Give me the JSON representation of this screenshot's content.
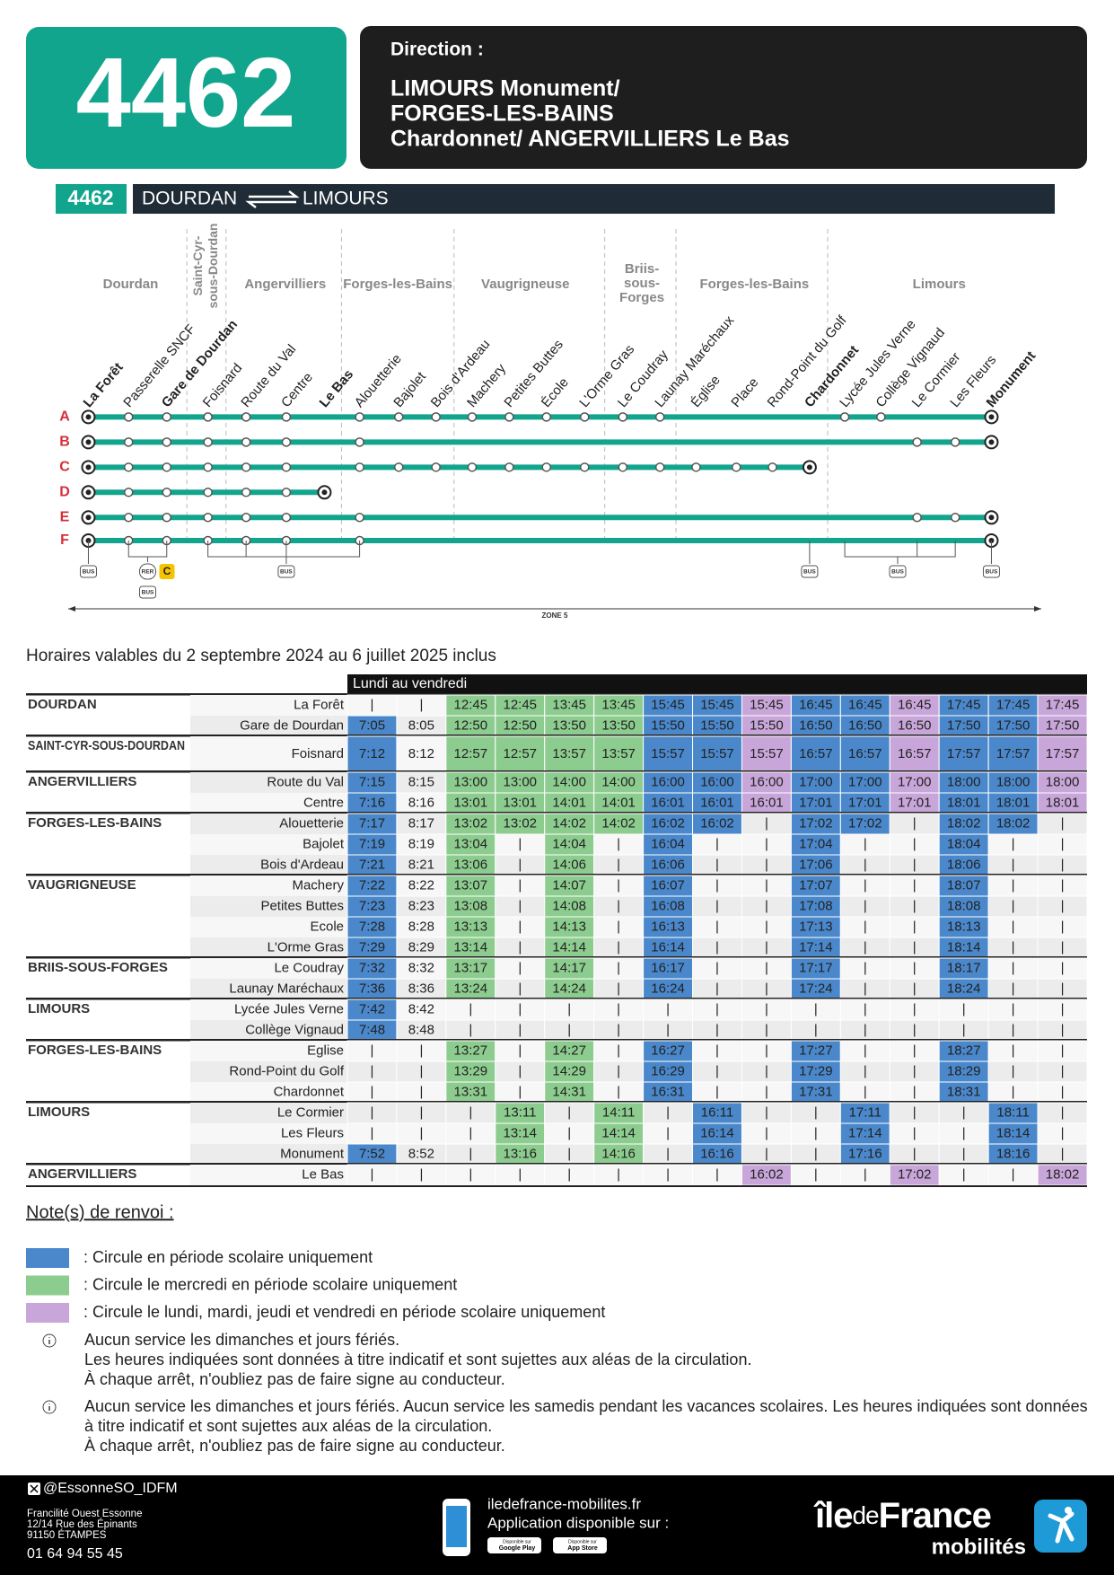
{
  "header": {
    "line": "4462",
    "direction_label": "Direction :",
    "direction": [
      "LIMOURS Monument/",
      "FORGES-LES-BAINS",
      "Chardonnet/ ANGERVILLIERS Le Bas"
    ]
  },
  "route": {
    "line": "4462",
    "from": "DOURDAN",
    "to": "LIMOURS"
  },
  "map": {
    "communes": [
      {
        "lines": [
          "Dourdan"
        ]
      },
      {
        "lines": [
          "Saint-Cyr-",
          "sous-Dourdan"
        ]
      },
      {
        "lines": [
          "Angervilliers"
        ]
      },
      {
        "lines": [
          "Forges-les-Bains"
        ]
      },
      {
        "lines": [
          "Vaugrigneuse"
        ]
      },
      {
        "lines": [
          "Briis-",
          "sous-",
          "Forges"
        ]
      },
      {
        "lines": [
          "Forges-les-Bains"
        ]
      },
      {
        "lines": [
          "Limours"
        ]
      }
    ],
    "stops": [
      {
        "name": "La Forêt",
        "bold": true
      },
      {
        "name": "Passerelle SNCF",
        "bold": false
      },
      {
        "name": "Gare de Dourdan",
        "bold": true
      },
      {
        "name": "Foisnard",
        "bold": false
      },
      {
        "name": "Route du Val",
        "bold": false
      },
      {
        "name": "Centre",
        "bold": false
      },
      {
        "name": "Le Bas",
        "bold": true
      },
      {
        "name": "Alouetterie",
        "bold": false
      },
      {
        "name": "Bajolet",
        "bold": false
      },
      {
        "name": "Bois d'Ardeau",
        "bold": false
      },
      {
        "name": "Machery",
        "bold": false
      },
      {
        "name": "Petites Buttes",
        "bold": false
      },
      {
        "name": "École",
        "bold": false
      },
      {
        "name": "L'Orme Gras",
        "bold": false
      },
      {
        "name": "Le Coudray",
        "bold": false
      },
      {
        "name": "Launay Maréchaux",
        "bold": false
      },
      {
        "name": "Église",
        "bold": false
      },
      {
        "name": "Place",
        "bold": false
      },
      {
        "name": "Rond-Point du Golf",
        "bold": false
      },
      {
        "name": "Chardonnet",
        "bold": true
      },
      {
        "name": "Lycée Jules Verne",
        "bold": false
      },
      {
        "name": "Collège Vignaud",
        "bold": false
      },
      {
        "name": "Le Cormier",
        "bold": false
      },
      {
        "name": "Les Fleurs",
        "bold": false
      },
      {
        "name": "Monument",
        "bold": true
      }
    ],
    "branches": [
      "A",
      "B",
      "C",
      "D",
      "E",
      "F"
    ],
    "bus_label": "BUS",
    "rer_label": "RER",
    "rer_line": "C",
    "zone": "ZONE 5"
  },
  "validity": "Horaires valables du 2 septembre 2024 au 6 juillet 2025 inclus",
  "timetable": {
    "days": "Lundi au vendredi",
    "column_colors": [
      "#4a88cb",
      null,
      "#8dcc8f",
      "#8dcc8f",
      "#8dcc8f",
      "#8dcc8f",
      "#4a88cb",
      "#4a88cb",
      "#c9a6d9",
      "#4a88cb",
      "#4a88cb",
      "#c9a6d9",
      "#4a88cb",
      "#4a88cb",
      "#c9a6d9"
    ],
    "groups": [
      {
        "commune": "DOURDAN",
        "stops": [
          {
            "name": "La Forêt",
            "times": [
              "|",
              "|",
              "12:45",
              "12:45",
              "13:45",
              "13:45",
              "15:45",
              "15:45",
              "15:45",
              "16:45",
              "16:45",
              "16:45",
              "17:45",
              "17:45",
              "17:45"
            ]
          },
          {
            "name": "Gare de Dourdan",
            "times": [
              "7:05",
              "8:05",
              "12:50",
              "12:50",
              "13:50",
              "13:50",
              "15:50",
              "15:50",
              "15:50",
              "16:50",
              "16:50",
              "16:50",
              "17:50",
              "17:50",
              "17:50"
            ]
          }
        ]
      },
      {
        "commune": "SAINT-CYR-SOUS-DOURDAN",
        "stops": [
          {
            "name": "Foisnard",
            "times": [
              "7:12",
              "8:12",
              "12:57",
              "12:57",
              "13:57",
              "13:57",
              "15:57",
              "15:57",
              "15:57",
              "16:57",
              "16:57",
              "16:57",
              "17:57",
              "17:57",
              "17:57"
            ]
          }
        ]
      },
      {
        "commune": "ANGERVILLIERS",
        "stops": [
          {
            "name": "Route du Val",
            "times": [
              "7:15",
              "8:15",
              "13:00",
              "13:00",
              "14:00",
              "14:00",
              "16:00",
              "16:00",
              "16:00",
              "17:00",
              "17:00",
              "17:00",
              "18:00",
              "18:00",
              "18:00"
            ]
          },
          {
            "name": "Centre",
            "times": [
              "7:16",
              "8:16",
              "13:01",
              "13:01",
              "14:01",
              "14:01",
              "16:01",
              "16:01",
              "16:01",
              "17:01",
              "17:01",
              "17:01",
              "18:01",
              "18:01",
              "18:01"
            ]
          }
        ]
      },
      {
        "commune": "FORGES-LES-BAINS",
        "stops": [
          {
            "name": "Alouetterie",
            "times": [
              "7:17",
              "8:17",
              "13:02",
              "13:02",
              "14:02",
              "14:02",
              "16:02",
              "16:02",
              "|",
              "17:02",
              "17:02",
              "|",
              "18:02",
              "18:02",
              "|"
            ]
          },
          {
            "name": "Bajolet",
            "times": [
              "7:19",
              "8:19",
              "13:04",
              "|",
              "14:04",
              "|",
              "16:04",
              "|",
              "|",
              "17:04",
              "|",
              "|",
              "18:04",
              "|",
              "|"
            ]
          },
          {
            "name": "Bois d'Ardeau",
            "times": [
              "7:21",
              "8:21",
              "13:06",
              "|",
              "14:06",
              "|",
              "16:06",
              "|",
              "|",
              "17:06",
              "|",
              "|",
              "18:06",
              "|",
              "|"
            ]
          }
        ]
      },
      {
        "commune": "VAUGRIGNEUSE",
        "stops": [
          {
            "name": "Machery",
            "times": [
              "7:22",
              "8:22",
              "13:07",
              "|",
              "14:07",
              "|",
              "16:07",
              "|",
              "|",
              "17:07",
              "|",
              "|",
              "18:07",
              "|",
              "|"
            ]
          },
          {
            "name": "Petites Buttes",
            "times": [
              "7:23",
              "8:23",
              "13:08",
              "|",
              "14:08",
              "|",
              "16:08",
              "|",
              "|",
              "17:08",
              "|",
              "|",
              "18:08",
              "|",
              "|"
            ]
          },
          {
            "name": "Ecole",
            "times": [
              "7:28",
              "8:28",
              "13:13",
              "|",
              "14:13",
              "|",
              "16:13",
              "|",
              "|",
              "17:13",
              "|",
              "|",
              "18:13",
              "|",
              "|"
            ]
          },
          {
            "name": "L'Orme Gras",
            "times": [
              "7:29",
              "8:29",
              "13:14",
              "|",
              "14:14",
              "|",
              "16:14",
              "|",
              "|",
              "17:14",
              "|",
              "|",
              "18:14",
              "|",
              "|"
            ]
          }
        ]
      },
      {
        "commune": "BRIIS-SOUS-FORGES",
        "stops": [
          {
            "name": "Le Coudray",
            "times": [
              "7:32",
              "8:32",
              "13:17",
              "|",
              "14:17",
              "|",
              "16:17",
              "|",
              "|",
              "17:17",
              "|",
              "|",
              "18:17",
              "|",
              "|"
            ]
          },
          {
            "name": "Launay Maréchaux",
            "times": [
              "7:36",
              "8:36",
              "13:24",
              "|",
              "14:24",
              "|",
              "16:24",
              "|",
              "|",
              "17:24",
              "|",
              "|",
              "18:24",
              "|",
              "|"
            ]
          }
        ]
      },
      {
        "commune": "LIMOURS",
        "stops": [
          {
            "name": "Lycée Jules Verne",
            "times": [
              "7:42",
              "8:42",
              "|",
              "|",
              "|",
              "|",
              "|",
              "|",
              "|",
              "|",
              "|",
              "|",
              "|",
              "|",
              "|"
            ]
          },
          {
            "name": "Collège Vignaud",
            "times": [
              "7:48",
              "8:48",
              "|",
              "|",
              "|",
              "|",
              "|",
              "|",
              "|",
              "|",
              "|",
              "|",
              "|",
              "|",
              "|"
            ]
          }
        ]
      },
      {
        "commune": "FORGES-LES-BAINS",
        "stops": [
          {
            "name": "Eglise",
            "times": [
              "|",
              "|",
              "13:27",
              "|",
              "14:27",
              "|",
              "16:27",
              "|",
              "|",
              "17:27",
              "|",
              "|",
              "18:27",
              "|",
              "|"
            ]
          },
          {
            "name": "Rond-Point du Golf",
            "times": [
              "|",
              "|",
              "13:29",
              "|",
              "14:29",
              "|",
              "16:29",
              "|",
              "|",
              "17:29",
              "|",
              "|",
              "18:29",
              "|",
              "|"
            ]
          },
          {
            "name": "Chardonnet",
            "times": [
              "|",
              "|",
              "13:31",
              "|",
              "14:31",
              "|",
              "16:31",
              "|",
              "|",
              "17:31",
              "|",
              "|",
              "18:31",
              "|",
              "|"
            ]
          }
        ]
      },
      {
        "commune": "LIMOURS",
        "stops": [
          {
            "name": "Le Cormier",
            "times": [
              "|",
              "|",
              "|",
              "13:11",
              "|",
              "14:11",
              "|",
              "16:11",
              "|",
              "|",
              "17:11",
              "|",
              "|",
              "18:11",
              "|"
            ]
          },
          {
            "name": "Les Fleurs",
            "times": [
              "|",
              "|",
              "|",
              "13:14",
              "|",
              "14:14",
              "|",
              "16:14",
              "|",
              "|",
              "17:14",
              "|",
              "|",
              "18:14",
              "|"
            ]
          },
          {
            "name": "Monument",
            "times": [
              "7:52",
              "8:52",
              "|",
              "13:16",
              "|",
              "14:16",
              "|",
              "16:16",
              "|",
              "|",
              "17:16",
              "|",
              "|",
              "18:16",
              "|"
            ]
          }
        ]
      },
      {
        "commune": "ANGERVILLIERS",
        "stops": [
          {
            "name": "Le Bas",
            "times": [
              "|",
              "|",
              "|",
              "|",
              "|",
              "|",
              "|",
              "|",
              "16:02",
              "|",
              "|",
              "17:02",
              "|",
              "|",
              "18:02"
            ]
          }
        ]
      }
    ]
  },
  "notes": {
    "title": "Note(s) de renvoi :",
    "legend": [
      {
        "color": "#4a88cb",
        "text": ": Circule en période scolaire uniquement"
      },
      {
        "color": "#8dcc8f",
        "text": ": Circule le mercredi en période scolaire uniquement"
      },
      {
        "color": "#c9a6d9",
        "text": ": Circule le lundi, mardi, jeudi et vendredi en période scolaire uniquement"
      }
    ],
    "info": [
      {
        "lines": [
          "Aucun service les dimanches et jours fériés.",
          "Les heures indiquées sont données à titre indicatif et sont sujettes aux aléas de la circulation.",
          "À chaque arrêt, n'oubliez pas de faire signe au conducteur."
        ]
      },
      {
        "lines": [
          "Aucun service les dimanches et jours fériés. Aucun service les samedis pendant les vacances scolaires. Les heures indiquées sont données",
          "à titre indicatif et sont sujettes aux aléas de la circulation.",
          "À chaque arrêt, n'oubliez pas de faire signe au conducteur."
        ]
      }
    ]
  },
  "footer": {
    "social": "@EssonneSO_IDFM",
    "address": [
      "Francilité Ouest Essonne",
      "12/14 Rue des Épinants",
      "91150 ÉTAMPES"
    ],
    "phone": "01 64 94 55 45",
    "website": "iledefrance-mobilites.fr",
    "app": "Application disponible sur :",
    "badge_caption": "Disponible sur",
    "stores": [
      "Google Play",
      "App Store"
    ],
    "logo": [
      "île",
      "de",
      "France"
    ],
    "logo_sub": "mobilités"
  }
}
